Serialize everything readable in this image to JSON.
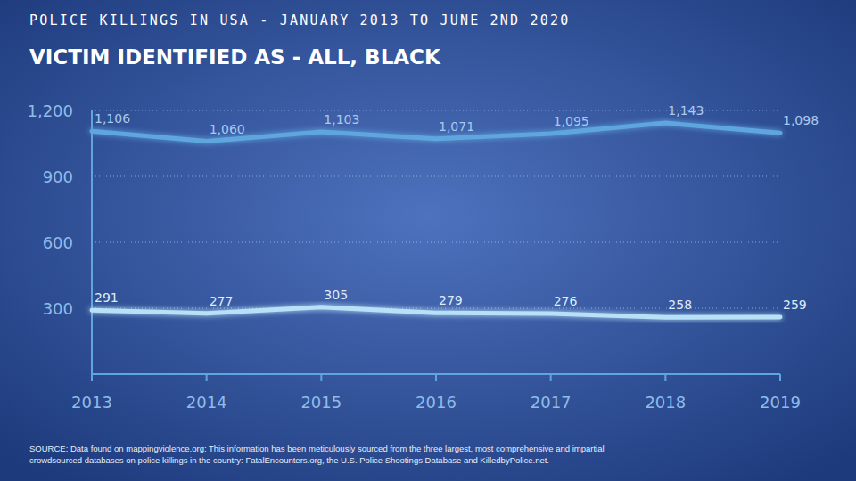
{
  "chart_data": {
    "type": "line",
    "title": "POLICE KILLINGS IN USA - JANUARY 2013 TO JUNE 2ND 2020",
    "subtitle": "VICTIM IDENTIFIED AS - ALL, BLACK",
    "source": "SOURCE: Data found on mappingviolence.org: This information has been meticulously sourced from the three largest, most comprehensive and impartial crowdsourced databases on police killings in the country: FatalEncounters.org, the U.S. Police Shootings Database and KilledbyPolice.net.",
    "categories": [
      "2013",
      "2014",
      "2015",
      "2016",
      "2017",
      "2018",
      "2019"
    ],
    "series": [
      {
        "color": "#5fa6de",
        "values": [
          1106,
          1060,
          1103,
          1071,
          1095,
          1143,
          1098
        ],
        "value_labels": [
          "1,106",
          "1,060",
          "1,103",
          "1,071",
          "1,095",
          "1,143",
          "1,098"
        ]
      },
      {
        "color": "#b8e0f6",
        "values": [
          291,
          277,
          305,
          279,
          276,
          258,
          259
        ]
      }
    ],
    "ylim": [
      0,
      1200
    ],
    "yticks": [
      300,
      600,
      900,
      {
        "value": 1200,
        "label": "1,200"
      }
    ],
    "grid": true,
    "data_labels": true
  }
}
